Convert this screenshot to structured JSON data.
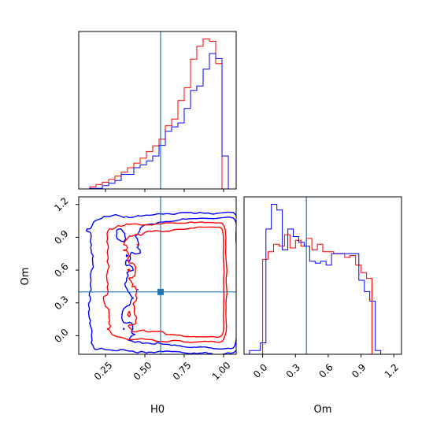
{
  "chart_data": {
    "type": "corner",
    "parameters": [
      "H0",
      "Om"
    ],
    "truth": {
      "H0": 0.6,
      "Om": 0.4
    },
    "colors": {
      "series_a": "#ff0000",
      "series_b": "#0000ff",
      "truth": "#1f77b4"
    },
    "series": [
      {
        "color": "#ff0000",
        "hist_H0": {
          "edges": [
            0.15,
            0.19,
            0.23,
            0.27,
            0.31,
            0.35,
            0.39,
            0.43,
            0.47,
            0.51,
            0.55,
            0.59,
            0.63,
            0.67,
            0.71,
            0.75,
            0.79,
            0.83,
            0.87,
            0.91,
            0.95,
            0.99
          ],
          "counts": [
            0.4,
            0.8,
            1.2,
            1.7,
            2.3,
            3.0,
            3.8,
            4.6,
            5.5,
            6.7,
            7.7,
            8.9,
            11.3,
            12.5,
            15.8,
            18.1,
            23.2,
            25.5,
            26.8,
            26.4,
            22.4
          ]
        },
        "hist_Om": {
          "edges": [
            0.0,
            0.05,
            0.1,
            0.15,
            0.2,
            0.25,
            0.3,
            0.35,
            0.4,
            0.45,
            0.5,
            0.55,
            0.6,
            0.65,
            0.7,
            0.75,
            0.8,
            0.85,
            0.9,
            0.95,
            1.0
          ],
          "counts": [
            50,
            54,
            58,
            57,
            63,
            56,
            60,
            57,
            61,
            55,
            58,
            54,
            54,
            53,
            53,
            51,
            52,
            47,
            43,
            40
          ]
        }
      },
      {
        "color": "#0000ff",
        "hist_H0": {
          "edges": [
            0.15,
            0.19,
            0.23,
            0.27,
            0.31,
            0.35,
            0.39,
            0.43,
            0.47,
            0.51,
            0.55,
            0.59,
            0.63,
            0.67,
            0.71,
            0.75,
            0.79,
            0.83,
            0.87,
            0.91,
            0.95,
            0.99,
            1.03
          ],
          "counts": [
            0.1,
            0.1,
            0.6,
            1.0,
            1.5,
            2.6,
            2.6,
            3.8,
            4.3,
            5.0,
            5.9,
            7.8,
            10.3,
            11.1,
            11.8,
            14.4,
            17.6,
            18.4,
            21.4,
            24.2,
            23.3,
            5.9
          ]
        },
        "hist_Om": {
          "edges": [
            -0.12,
            -0.07,
            -0.02,
            0.03,
            0.08,
            0.13,
            0.18,
            0.23,
            0.28,
            0.33,
            0.38,
            0.43,
            0.48,
            0.53,
            0.58,
            0.63,
            0.68,
            0.73,
            0.78,
            0.83,
            0.88,
            0.93,
            0.98,
            1.03,
            1.08
          ],
          "counts": [
            2,
            2,
            6,
            66,
            79,
            76,
            55,
            66,
            62,
            59,
            57,
            49,
            48,
            49,
            47,
            53,
            53,
            53,
            53,
            53,
            39,
            33,
            28,
            2
          ]
        }
      }
    ],
    "axes": {
      "H0": {
        "label": "H0",
        "range": [
          0.08,
          1.08
        ],
        "ticks": [
          0.25,
          0.5,
          0.75,
          1.0
        ],
        "tick_labels": [
          "0.25",
          "0.50",
          "0.75",
          "1.00"
        ]
      },
      "Om": {
        "label": "Om",
        "range": [
          -0.17,
          1.27
        ],
        "ticks": [
          0.0,
          0.3,
          0.6,
          0.9,
          1.2
        ],
        "tick_labels": [
          "0.0",
          "0.3",
          "0.6",
          "0.9",
          "1.2"
        ]
      }
    }
  },
  "labels": {
    "xlabel_h0": "H0",
    "xlabel_om": "Om",
    "ylabel_om": "Om"
  }
}
